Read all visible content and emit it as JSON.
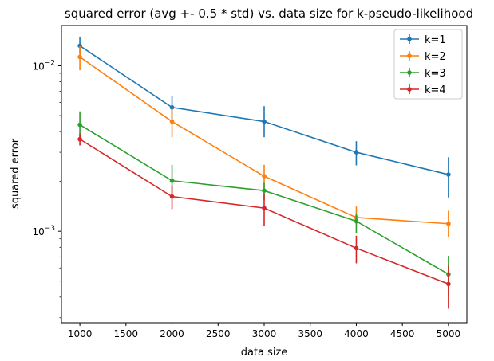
{
  "chart_data": {
    "type": "line",
    "title": "squared error (avg +- 0.5 * std) vs. data size for k-pseudo-likelihood",
    "xlabel": "data size",
    "ylabel": "squared error",
    "yscale": "log",
    "xlim": [
      800,
      5200
    ],
    "ylim": [
      0.00028,
      0.0175
    ],
    "x_ticks": [
      1000,
      1500,
      2000,
      2500,
      3000,
      3500,
      4000,
      4500,
      5000
    ],
    "y_ticks": [
      {
        "value": 0.01,
        "label_base": "10",
        "label_exp": "−2"
      },
      {
        "value": 0.001,
        "label_base": "10",
        "label_exp": "−3"
      }
    ],
    "x": [
      1000,
      2000,
      3000,
      4000,
      5000
    ],
    "legend_position": "upper-right",
    "series": [
      {
        "name": "k=1",
        "color": "#1f77b4",
        "values": [
          0.0132,
          0.0056,
          0.0046,
          0.003,
          0.0022
        ],
        "err_low": [
          0.0118,
          0.0046,
          0.0037,
          0.0025,
          0.0016
        ],
        "err_high": [
          0.015,
          0.0066,
          0.0057,
          0.0035,
          0.0028
        ]
      },
      {
        "name": "k=2",
        "color": "#ff7f0e",
        "values": [
          0.0113,
          0.0046,
          0.00215,
          0.00121,
          0.00111
        ],
        "err_low": [
          0.0094,
          0.0037,
          0.00178,
          0.0011,
          0.00092
        ],
        "err_high": [
          0.0131,
          0.0055,
          0.00252,
          0.00141,
          0.00133
        ]
      },
      {
        "name": "k=3",
        "color": "#2ca02c",
        "values": [
          0.0044,
          0.00202,
          0.00176,
          0.00115,
          0.00055
        ],
        "err_low": [
          0.0036,
          0.0016,
          0.00154,
          0.00098,
          0.00041
        ],
        "err_high": [
          0.0053,
          0.00252,
          0.00196,
          0.00128,
          0.00071
        ]
      },
      {
        "name": "k=4",
        "color": "#d62728",
        "values": [
          0.0036,
          0.00162,
          0.00138,
          0.00079,
          0.00048
        ],
        "err_low": [
          0.0033,
          0.00136,
          0.00107,
          0.00064,
          0.00034
        ],
        "err_high": [
          0.0039,
          0.00189,
          0.00169,
          0.00094,
          0.00062
        ]
      }
    ]
  }
}
